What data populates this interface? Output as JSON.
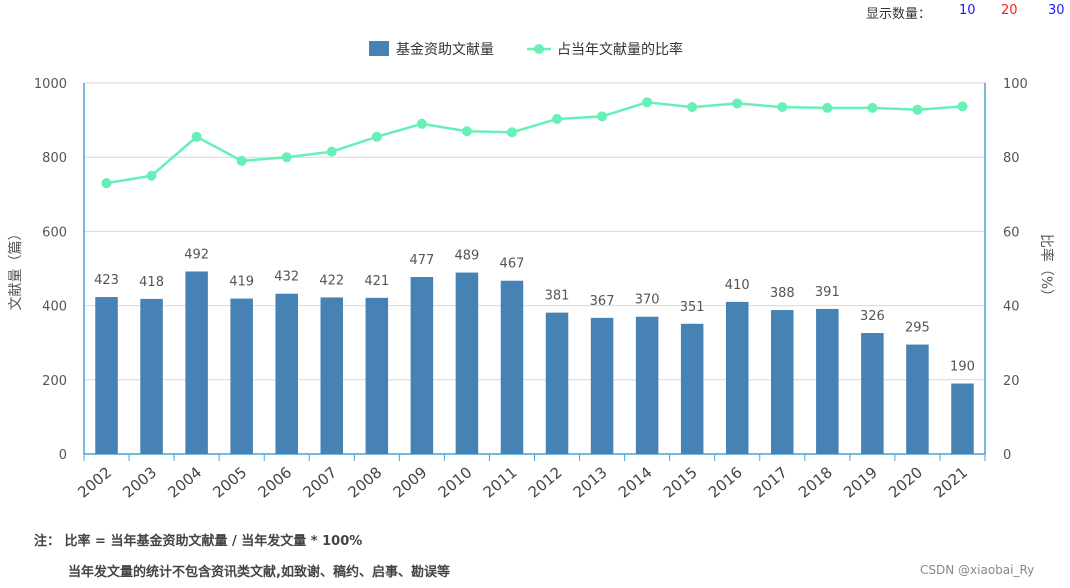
{
  "page_size_selector": {
    "label": "显示数量：",
    "options": [
      {
        "label": "10",
        "color": "#1a1aff"
      },
      {
        "label": "20",
        "color": "#ff1a1a"
      },
      {
        "label": "30",
        "color": "#1a1aff"
      }
    ]
  },
  "chart_data": {
    "type": "bar+line",
    "categories": [
      "2002",
      "2003",
      "2004",
      "2005",
      "2006",
      "2007",
      "2008",
      "2009",
      "2010",
      "2011",
      "2012",
      "2013",
      "2014",
      "2015",
      "2016",
      "2017",
      "2018",
      "2019",
      "2020",
      "2021"
    ],
    "series": [
      {
        "name": "基金资助文献量",
        "type": "bar",
        "axis": "left",
        "color": "#4682b4",
        "values": [
          423,
          418,
          492,
          419,
          432,
          422,
          421,
          477,
          489,
          467,
          381,
          367,
          370,
          351,
          410,
          388,
          391,
          326,
          295,
          190
        ]
      },
      {
        "name": "占当年文献量的比率",
        "type": "line",
        "axis": "right",
        "color": "#66f0b8",
        "values": [
          73,
          75,
          85.5,
          79,
          80,
          81.5,
          85.5,
          89,
          87,
          86.7,
          90.3,
          91,
          94.8,
          93.5,
          94.5,
          93.5,
          93.3,
          93.3,
          92.8,
          93.7
        ]
      }
    ],
    "y_left": {
      "label": "文献量（篇）",
      "ylim": [
        0,
        1000
      ],
      "ticks": [
        0,
        200,
        400,
        600,
        800,
        1000
      ]
    },
    "y_right": {
      "label": "比率（%）",
      "ylim": [
        0,
        100
      ],
      "ticks": [
        0,
        20,
        40,
        60,
        80,
        100
      ]
    },
    "grid": true,
    "legend_position": "top-center"
  },
  "footnotes": {
    "line1": "注：  比率 = 当年基金资助文献量 / 当年发文量 * 100%",
    "line2": "当年发文量的统计不包含资讯类文献,如致谢、稿约、启事、勘误等"
  },
  "watermark": "CSDN @xiaobai_Ry"
}
